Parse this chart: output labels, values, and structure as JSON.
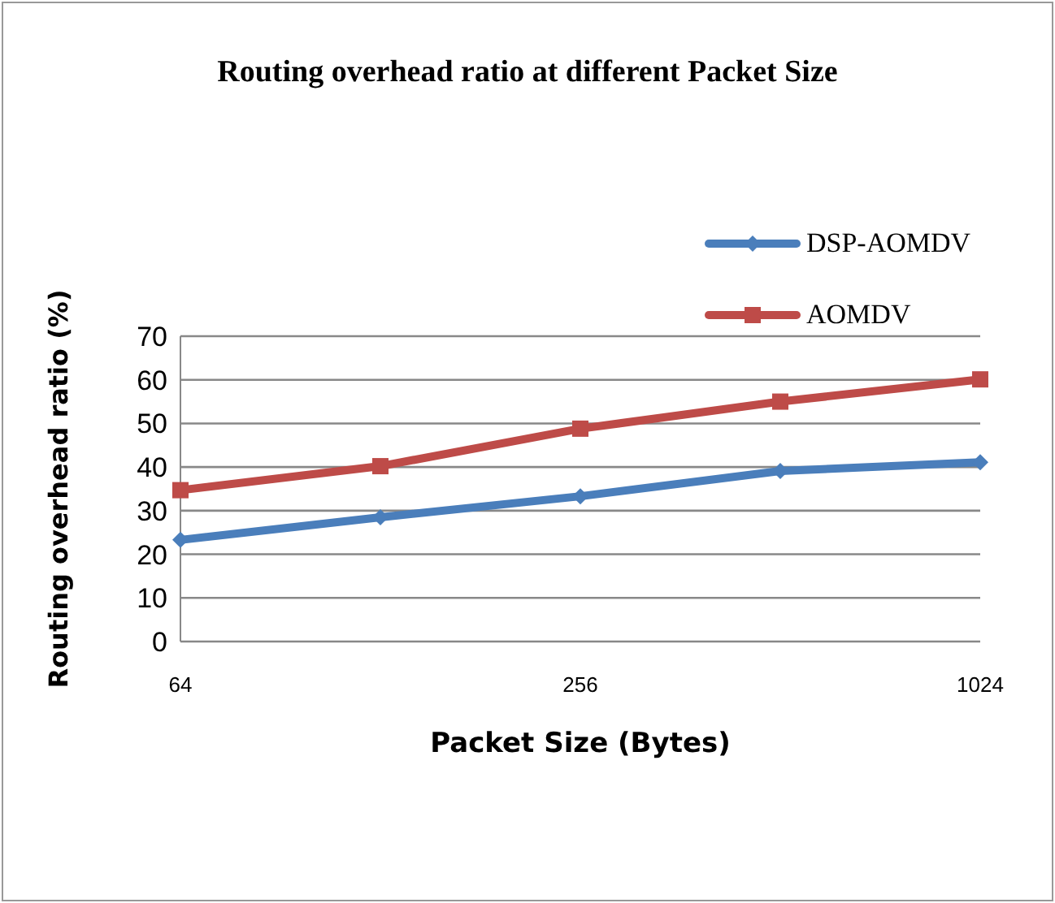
{
  "chart_data": {
    "type": "line",
    "title": "Routing overhead ratio at different Packet Size",
    "xlabel": "Packet Size (Bytes)",
    "ylabel": "Routing overhead ratio (%)",
    "categories": [
      "64",
      null,
      "256",
      null,
      "1024"
    ],
    "series": [
      {
        "name": "DSP-AOMDV",
        "color": "#4a7ebb",
        "marker": "diamond",
        "values": [
          23.3,
          28.5,
          33.3,
          39.1,
          41.1
        ]
      },
      {
        "name": "AOMDV",
        "color": "#be4b48",
        "marker": "square",
        "values": [
          34.7,
          40.2,
          48.8,
          55,
          60.1
        ]
      }
    ],
    "ylim": [
      0,
      70
    ],
    "yticks": [
      0,
      10,
      20,
      30,
      40,
      50,
      60,
      70
    ],
    "grid": "y",
    "legend": "top right"
  }
}
